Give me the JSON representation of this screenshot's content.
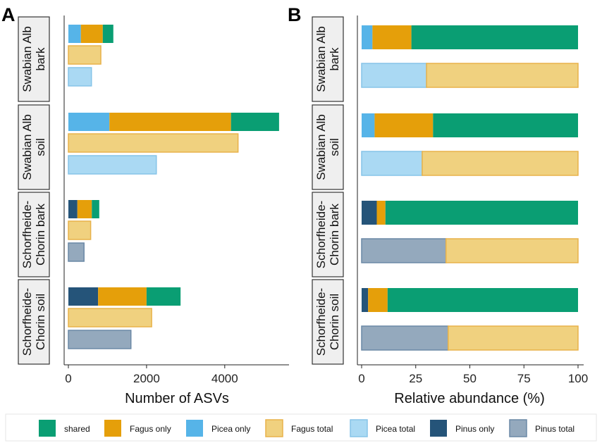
{
  "panels": {
    "a": "A",
    "b": "B"
  },
  "facets": [
    {
      "line1": "Swabian Alb",
      "line2": "bark"
    },
    {
      "line1": "Swabian Alb",
      "line2": "soil"
    },
    {
      "line1": "Schorfheide-",
      "line2": "Chorin bark"
    },
    {
      "line1": "Schorfheide-",
      "line2": "Chorin soil"
    }
  ],
  "colors": {
    "shared": "#0a9e73",
    "fagus_only": "#e59f0a",
    "picea_only": "#56b4e8",
    "fagus_total": "#f0d17f",
    "picea_total": "#aad9f3",
    "pinus_only": "#255479",
    "pinus_total": "#94a9bd",
    "fagus_total_border": "#e8b24a",
    "picea_total_border": "#86c4e8",
    "pinus_total_border": "#6b89a6"
  },
  "legend": {
    "items": [
      {
        "key": "shared",
        "label": "shared"
      },
      {
        "key": "fagus_only",
        "label": "Fagus only"
      },
      {
        "key": "picea_only",
        "label": "Picea only"
      },
      {
        "key": "fagus_total",
        "label": "Fagus total"
      },
      {
        "key": "picea_total",
        "label": "Picea total"
      },
      {
        "key": "pinus_only",
        "label": "Pinus only"
      },
      {
        "key": "pinus_total",
        "label": "Pinus total"
      }
    ]
  },
  "chart_data": [
    {
      "type": "bar",
      "orientation": "horizontal",
      "panel": "A",
      "xlabel": "Number of ASVs",
      "xlim": [
        0,
        5500
      ],
      "xticks": [
        0,
        2000,
        4000
      ],
      "xtick_labels": [
        "0",
        "2000",
        "4000"
      ],
      "facets": [
        {
          "name": "Swabian Alb bark",
          "stacked": [
            {
              "key": "picea_only",
              "value": 320
            },
            {
              "key": "fagus_only",
              "value": 560
            },
            {
              "key": "shared",
              "value": 270
            }
          ],
          "total1": {
            "key": "fagus_total",
            "value": 830
          },
          "total2": {
            "key": "picea_total",
            "value": 590
          }
        },
        {
          "name": "Swabian Alb soil",
          "stacked": [
            {
              "key": "picea_only",
              "value": 1050
            },
            {
              "key": "fagus_only",
              "value": 3110
            },
            {
              "key": "shared",
              "value": 1230
            }
          ],
          "total1": {
            "key": "fagus_total",
            "value": 4340
          },
          "total2": {
            "key": "picea_total",
            "value": 2250
          }
        },
        {
          "name": "Schorfheide-Chorin bark",
          "stacked": [
            {
              "key": "pinus_only",
              "value": 230
            },
            {
              "key": "fagus_only",
              "value": 370
            },
            {
              "key": "shared",
              "value": 190
            }
          ],
          "total1": {
            "key": "fagus_total",
            "value": 570
          },
          "total2": {
            "key": "pinus_total",
            "value": 400
          }
        },
        {
          "name": "Schorfheide-Chorin soil",
          "stacked": [
            {
              "key": "pinus_only",
              "value": 760
            },
            {
              "key": "fagus_only",
              "value": 1240
            },
            {
              "key": "shared",
              "value": 870
            }
          ],
          "total1": {
            "key": "fagus_total",
            "value": 2130
          },
          "total2": {
            "key": "pinus_total",
            "value": 1600
          }
        }
      ]
    },
    {
      "type": "bar",
      "orientation": "horizontal",
      "panel": "B",
      "xlabel": "Relative abundance (%)",
      "xlim": [
        0,
        100
      ],
      "xticks": [
        0,
        25,
        50,
        75,
        100
      ],
      "xtick_labels": [
        "0",
        "25",
        "50",
        "75",
        "100"
      ],
      "facets": [
        {
          "name": "Swabian Alb bark",
          "stacked": [
            {
              "key": "picea_only",
              "value": 5
            },
            {
              "key": "fagus_only",
              "value": 18
            },
            {
              "key": "shared",
              "value": 77
            }
          ],
          "composition": [
            {
              "key": "picea_total",
              "value": 30
            },
            {
              "key": "fagus_total",
              "value": 70
            }
          ]
        },
        {
          "name": "Swabian Alb soil",
          "stacked": [
            {
              "key": "picea_only",
              "value": 6
            },
            {
              "key": "fagus_only",
              "value": 27
            },
            {
              "key": "shared",
              "value": 67
            }
          ],
          "composition": [
            {
              "key": "picea_total",
              "value": 28
            },
            {
              "key": "fagus_total",
              "value": 72
            }
          ]
        },
        {
          "name": "Schorfheide-Chorin bark",
          "stacked": [
            {
              "key": "pinus_only",
              "value": 7
            },
            {
              "key": "fagus_only",
              "value": 4
            },
            {
              "key": "shared",
              "value": 89
            }
          ],
          "composition": [
            {
              "key": "pinus_total",
              "value": 39
            },
            {
              "key": "fagus_total",
              "value": 61
            }
          ]
        },
        {
          "name": "Schorfheide-Chorin soil",
          "stacked": [
            {
              "key": "pinus_only",
              "value": 3
            },
            {
              "key": "fagus_only",
              "value": 9
            },
            {
              "key": "shared",
              "value": 88
            }
          ],
          "composition": [
            {
              "key": "pinus_total",
              "value": 40
            },
            {
              "key": "fagus_total",
              "value": 60
            }
          ]
        }
      ]
    }
  ]
}
